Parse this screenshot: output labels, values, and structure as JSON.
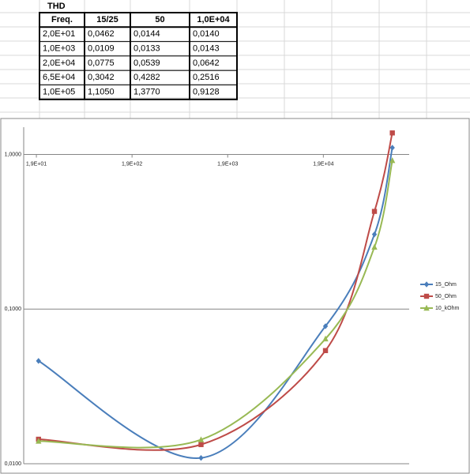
{
  "table": {
    "title": "THD",
    "header": [
      "Freq.",
      "15/25",
      "50",
      "1,0E+04"
    ],
    "rows": [
      [
        "2,0E+01",
        "0,0462",
        "0,0144",
        "0,0140"
      ],
      [
        "1,0E+03",
        "0,0109",
        "0,0133",
        "0,0143"
      ],
      [
        "2,0E+04",
        "0,0775",
        "0,0539",
        "0,0642"
      ],
      [
        "6,5E+04",
        "0,3042",
        "0,4282",
        "0,2516"
      ],
      [
        "1,0E+05",
        "1,1050",
        "1,3770",
        "0,9128"
      ]
    ]
  },
  "chart_data": {
    "type": "line",
    "log_x": true,
    "log_y": true,
    "smooth": true,
    "grid": true,
    "x": [
      20,
      1000,
      20000,
      65000,
      100000
    ],
    "series": [
      {
        "name": "15_Ohm",
        "color": "#4a7ebb",
        "marker": "diamond",
        "values": [
          0.0462,
          0.0109,
          0.0775,
          0.3042,
          1.105
        ]
      },
      {
        "name": "50_Ohm",
        "color": "#be4b48",
        "marker": "square",
        "values": [
          0.0144,
          0.0133,
          0.0539,
          0.4282,
          1.377
        ]
      },
      {
        "name": "10_kOhm",
        "color": "#98b954",
        "marker": "triangle",
        "values": [
          0.014,
          0.0143,
          0.0642,
          0.2516,
          0.9128
        ]
      }
    ],
    "xlim": [
      14,
      150000
    ],
    "xticks": [
      {
        "value": 19,
        "label": "1,9E+01"
      },
      {
        "value": 190,
        "label": "1,9E+02"
      },
      {
        "value": 1900,
        "label": "1,9E+03"
      },
      {
        "value": 19000,
        "label": "1,9E+04"
      }
    ],
    "ylim": [
      0.01,
      1.5
    ],
    "yticks": [
      {
        "value": 0.01,
        "label": "0,0100"
      },
      {
        "value": 0.1,
        "label": "0,1000"
      },
      {
        "value": 1,
        "label": "1,0000"
      }
    ],
    "legend": "right"
  }
}
